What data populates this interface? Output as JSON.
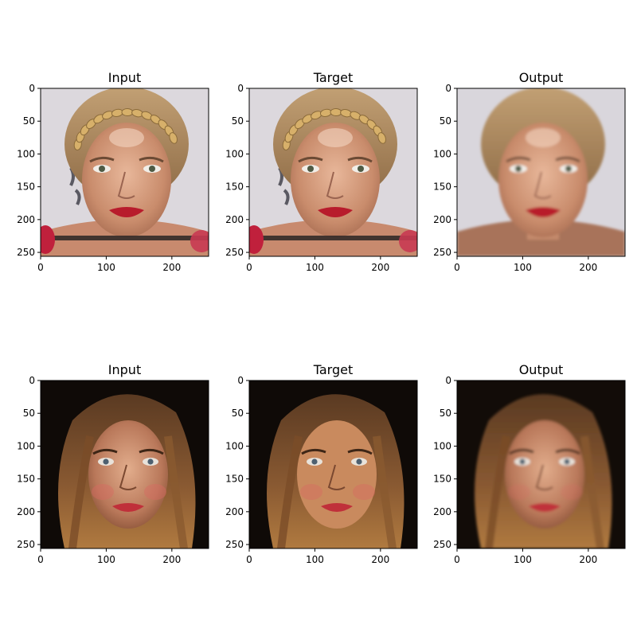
{
  "panels": [
    {
      "title": "Input",
      "subject": "blonde-braided-woman",
      "variant": "sharp-with-bar"
    },
    {
      "title": "Target",
      "subject": "blonde-braided-woman",
      "variant": "sharp-with-bar"
    },
    {
      "title": "Output",
      "subject": "blonde-braided-woman",
      "variant": "smooth"
    },
    {
      "title": "Input",
      "subject": "brunette-woman",
      "variant": "sharp"
    },
    {
      "title": "Target",
      "subject": "brunette-woman",
      "variant": "sharp-warm"
    },
    {
      "title": "Output",
      "subject": "brunette-woman",
      "variant": "smooth"
    }
  ],
  "axes": {
    "x_ticks": [
      "0",
      "100",
      "200"
    ],
    "y_ticks": [
      "0",
      "50",
      "100",
      "150",
      "200",
      "250"
    ],
    "x_tick_values": [
      0,
      100,
      200
    ],
    "y_tick_values": [
      0,
      50,
      100,
      150,
      200,
      250
    ],
    "extent": [
      0,
      256
    ]
  }
}
